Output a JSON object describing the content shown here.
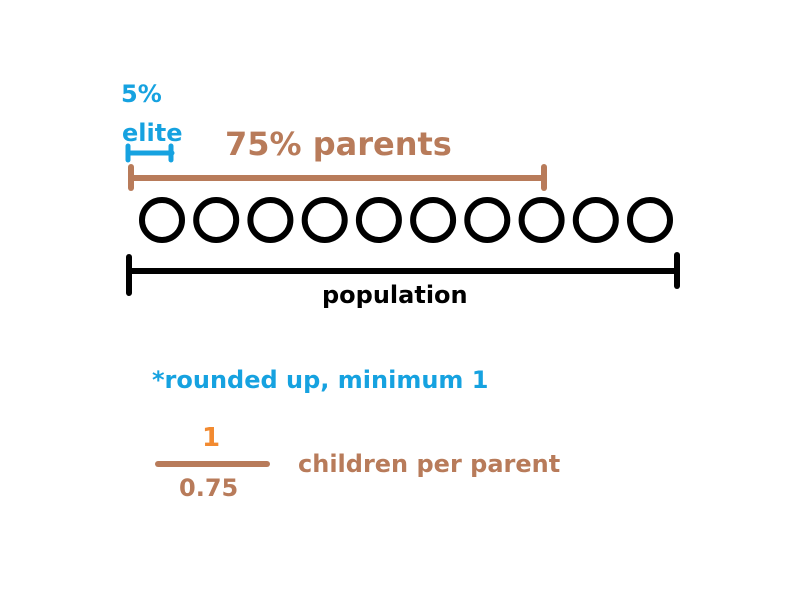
{
  "elite": {
    "percent": "5%",
    "label": "elite",
    "color": "#16a2e0"
  },
  "parents": {
    "label": "75% parents",
    "color": "#b87b5a"
  },
  "population": {
    "label": "population",
    "individual_count": 10,
    "color": "#000000"
  },
  "note": {
    "text": "*rounded up, minimum 1",
    "color": "#16a2e0"
  },
  "formula": {
    "numerator": "1",
    "denominator": "0.75",
    "caption": "children per parent",
    "numerator_color": "#f28a30",
    "denominator_color": "#b87b5a"
  }
}
